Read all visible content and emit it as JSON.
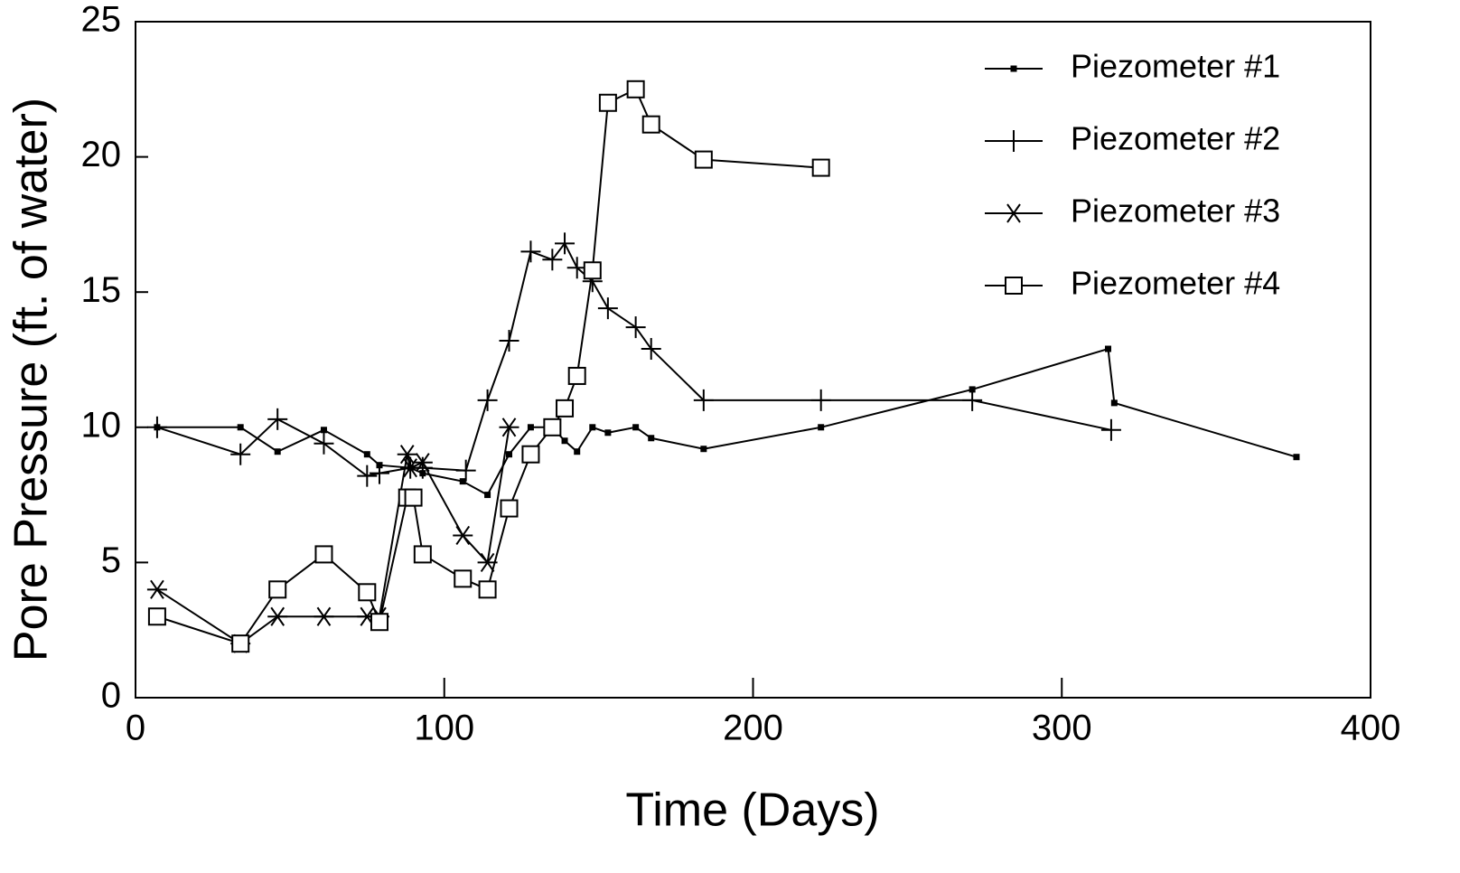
{
  "chart_data": {
    "type": "line",
    "xlabel": "Time (Days)",
    "ylabel": "Pore Pressure (ft. of water)",
    "xlim": [
      0,
      400
    ],
    "ylim": [
      0,
      25
    ],
    "xticks": [
      0,
      100,
      200,
      300,
      400
    ],
    "yticks": [
      0,
      5,
      10,
      15,
      20,
      25
    ],
    "legend": "upper right",
    "series": [
      {
        "name": "Piezometer #1",
        "color": "#000000",
        "marker": "small-square",
        "x": [
          7,
          34,
          46,
          61,
          75,
          79,
          89,
          93,
          106,
          114,
          121,
          128,
          135,
          139,
          143,
          148,
          153,
          162,
          167,
          184,
          222,
          271,
          315,
          317,
          376
        ],
        "values": [
          10.0,
          10.0,
          9.1,
          9.9,
          9.0,
          8.6,
          8.5,
          8.3,
          8.0,
          7.5,
          9.0,
          10.0,
          10.0,
          9.5,
          9.1,
          10.0,
          9.8,
          10.0,
          9.6,
          9.2,
          10.0,
          11.4,
          12.9,
          10.9,
          8.9
        ]
      },
      {
        "name": "Piezometer #2",
        "color": "#000000",
        "marker": "plus",
        "x": [
          7,
          34,
          46,
          61,
          75,
          79,
          89,
          93,
          107,
          114,
          121,
          128,
          135,
          139,
          143,
          148,
          153,
          162,
          167,
          184,
          222,
          271,
          316
        ],
        "values": [
          10.0,
          9.0,
          10.3,
          9.4,
          8.2,
          8.3,
          8.5,
          8.5,
          8.4,
          11.0,
          13.2,
          16.5,
          16.2,
          16.8,
          15.9,
          15.4,
          14.4,
          13.7,
          12.9,
          11.0,
          11.0,
          11.0,
          9.9
        ]
      },
      {
        "name": "Piezometer #3",
        "color": "#000000",
        "marker": "asterisk",
        "x": [
          7,
          34,
          46,
          61,
          75,
          79,
          88,
          89,
          93,
          106,
          114,
          121
        ],
        "values": [
          4.0,
          2.0,
          3.0,
          3.0,
          3.0,
          3.0,
          9.0,
          8.5,
          8.7,
          6.0,
          5.0,
          10.0
        ]
      },
      {
        "name": "Piezometer #4",
        "color": "#000000",
        "marker": "open-square",
        "x": [
          7,
          34,
          46,
          61,
          75,
          79,
          88,
          90,
          93,
          106,
          114,
          121,
          128,
          135,
          139,
          143,
          148,
          153,
          162,
          167,
          184,
          222
        ],
        "values": [
          3.0,
          2.0,
          4.0,
          5.3,
          3.9,
          2.8,
          7.4,
          7.4,
          5.3,
          4.4,
          4.0,
          7.0,
          9.0,
          10.0,
          10.7,
          11.9,
          15.8,
          22.0,
          22.5,
          21.2,
          19.9,
          19.6
        ]
      }
    ]
  }
}
